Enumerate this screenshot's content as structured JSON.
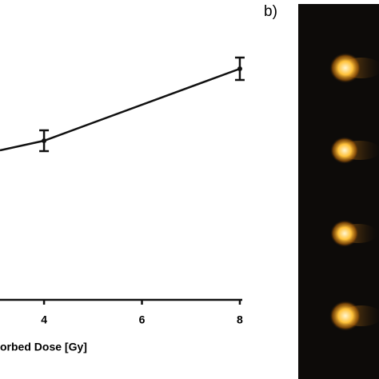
{
  "chart_data": {
    "type": "line",
    "xlabel": "orbed Dose [Gy]",
    "panel_label": "b)",
    "xlim": [
      3.1,
      8.05
    ],
    "xticks": [
      4,
      6,
      8
    ],
    "ylim": [
      0,
      375
    ],
    "series": [
      {
        "color": "#111111",
        "x": [
          3.1,
          4,
          8
        ],
        "values": [
          187,
          199,
          289
        ],
        "errors": [
          null,
          13,
          14
        ]
      }
    ]
  }
}
